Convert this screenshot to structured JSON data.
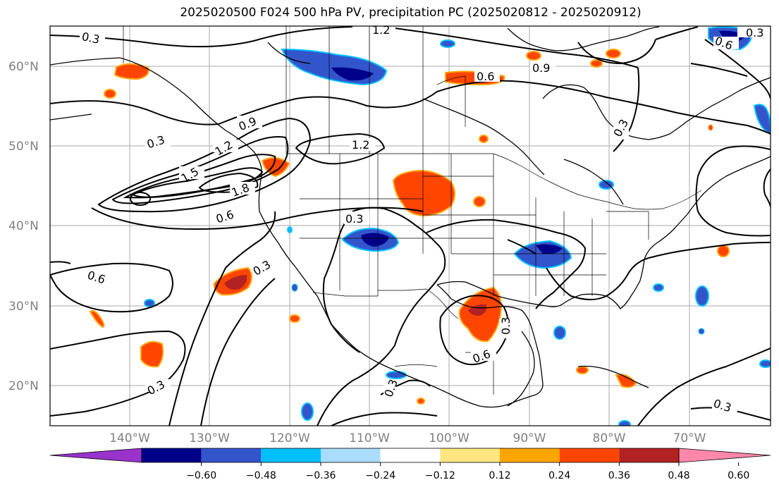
{
  "title": "2025020500 F024 500 hPa PV, precipitation PC (2025020812 - 2025020912)",
  "axes": {
    "lat_labels": [
      "60°N",
      "50°N",
      "40°N",
      "30°N",
      "20°N"
    ],
    "lon_labels": [
      "140°W",
      "130°W",
      "120°W",
      "110°W",
      "100°W",
      "90°W",
      "80°W",
      "70°W"
    ]
  },
  "contour_labels": [
    "0.3",
    "1.2",
    "0.6",
    "0.9",
    "0.3",
    "1.2",
    "0.9",
    "1.2",
    "1.5",
    "1.8",
    "0.3",
    "0.6",
    "0.3",
    "0.6",
    "0.3",
    "0.3",
    "0.6",
    "0.3",
    "0.3",
    "0.3",
    "0.6",
    "0.3"
  ],
  "colorbar": {
    "ticks": [
      "−0.60",
      "−0.48",
      "−0.36",
      "−0.24",
      "−0.12",
      "0.12",
      "0.24",
      "0.36",
      "0.48",
      "0.60"
    ],
    "colors": [
      "#9933cc",
      "#00008b",
      "#3355cc",
      "#00bfff",
      "#aadcff",
      "#ffffff",
      "#ffe680",
      "#ffa500",
      "#ff4500",
      "#b22222",
      "#ff88aa"
    ]
  }
}
